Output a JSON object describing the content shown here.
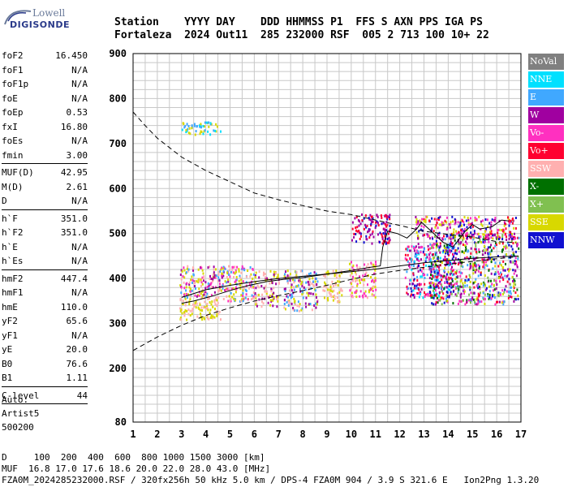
{
  "logo": {
    "line1": "Lowell",
    "line2": "DIGISONDE"
  },
  "header": {
    "line1": "Station    YYYY DAY    DDD HHMMSS P1  FFS S AXN PPS IGA PS",
    "line2": "Fortaleza  2024 Out11  285 232000 RSF  005 2 713 100 10+ 22"
  },
  "params": [
    [
      {
        "label": "foF2",
        "value": "16.450"
      },
      {
        "label": "foF1",
        "value": "N/A"
      },
      {
        "label": "foF1p",
        "value": "N/A"
      },
      {
        "label": "foE",
        "value": "N/A"
      },
      {
        "label": "foEp",
        "value": "0.53"
      },
      {
        "label": "fxI",
        "value": "16.80"
      },
      {
        "label": "foEs",
        "value": "N/A"
      },
      {
        "label": "fmin",
        "value": "3.00"
      }
    ],
    [
      {
        "label": "MUF(D)",
        "value": "42.95"
      },
      {
        "label": "M(D)",
        "value": "2.61"
      },
      {
        "label": "D",
        "value": "N/A"
      }
    ],
    [
      {
        "label": "h`F",
        "value": "351.0"
      },
      {
        "label": "h`F2",
        "value": "351.0"
      },
      {
        "label": "h`E",
        "value": "N/A"
      },
      {
        "label": "h`Es",
        "value": "N/A"
      }
    ],
    [
      {
        "label": "hmF2",
        "value": "447.4"
      },
      {
        "label": "hmF1",
        "value": "N/A"
      },
      {
        "label": "hmE",
        "value": "110.0"
      },
      {
        "label": "yF2",
        "value": "65.6"
      },
      {
        "label": "yF1",
        "value": "N/A"
      },
      {
        "label": "yE",
        "value": "20.0"
      },
      {
        "label": "B0",
        "value": "76.6"
      },
      {
        "label": "B1",
        "value": "1.11"
      }
    ],
    [
      {
        "label": "C-level",
        "value": "44"
      }
    ]
  ],
  "auto": {
    "line1": "Auto:",
    "line2": "Artist5",
    "line3": "500200"
  },
  "legend": [
    {
      "label": "NoVal",
      "color": "#808080"
    },
    {
      "label": "NNE",
      "color": "#00e0ff"
    },
    {
      "label": "E",
      "color": "#40a8ff"
    },
    {
      "label": "W",
      "color": "#a000a0"
    },
    {
      "label": "Vo-",
      "color": "#ff30c0"
    },
    {
      "label": "Vo+",
      "color": "#ff0030"
    },
    {
      "label": "SSW",
      "color": "#ffb0b0"
    },
    {
      "label": "X-",
      "color": "#007000"
    },
    {
      "label": "X+",
      "color": "#80c050"
    },
    {
      "label": "SSE",
      "color": "#d8d800"
    },
    {
      "label": "NNW",
      "color": "#1010d0"
    }
  ],
  "footer": {
    "line1": "D     100  200  400  600  800 1000 1500 3000 [km]",
    "line2": "MUF  16.8 17.0 17.6 18.6 20.0 22.0 28.0 43.0 [MHz]",
    "line3": "FZA0M_2024285232000.RSF / 320fx256h 50 kHz 5.0 km / DPS-4 FZA0M 904 / 3.9 S 321.6 E   Ion2Png 1.3.20"
  },
  "chart_data": {
    "type": "scatter",
    "x_ticks": [
      1,
      2,
      3,
      4,
      5,
      6,
      7,
      8,
      9,
      10,
      11,
      12,
      13,
      14,
      15,
      16,
      17
    ],
    "y_ticks": [
      80,
      200,
      300,
      400,
      500,
      600,
      700,
      800,
      900
    ],
    "xlim": [
      1,
      17
    ],
    "ylim": [
      80,
      900
    ],
    "grid": true,
    "ionogram_clusters": [
      {
        "x": [
          2.9,
          4.9
        ],
        "y": [
          360,
          430
        ],
        "colors": [
          "#40a8ff",
          "#d8d800",
          "#ff30c0",
          "#a000a0",
          "#ffb0b0"
        ]
      },
      {
        "x": [
          2.9,
          4.6
        ],
        "y": [
          310,
          360
        ],
        "colors": [
          "#ffb0b0",
          "#d8d800"
        ]
      },
      {
        "x": [
          4.6,
          6.0
        ],
        "y": [
          350,
          430
        ],
        "colors": [
          "#d8d800",
          "#40a8ff",
          "#ffb0b0",
          "#ff30c0"
        ]
      },
      {
        "x": [
          6.0,
          7.0
        ],
        "y": [
          340,
          420
        ],
        "colors": [
          "#d8d800",
          "#ffb0b0",
          "#a000a0"
        ]
      },
      {
        "x": [
          7.2,
          8.6
        ],
        "y": [
          330,
          420
        ],
        "colors": [
          "#ffb0b0",
          "#d8d800",
          "#a000a0",
          "#40a8ff"
        ]
      },
      {
        "x": [
          8.8,
          9.6
        ],
        "y": [
          350,
          420
        ],
        "colors": [
          "#d8d800",
          "#ffb0b0"
        ]
      },
      {
        "x": [
          9.9,
          11.0
        ],
        "y": [
          360,
          440
        ],
        "colors": [
          "#d8d800",
          "#ffb0b0",
          "#ff30c0"
        ]
      },
      {
        "x": [
          10.0,
          11.6
        ],
        "y": [
          480,
          545
        ],
        "colors": [
          "#1010d0",
          "#a000a0",
          "#ff0030"
        ]
      },
      {
        "x": [
          12.2,
          14.2
        ],
        "y": [
          360,
          480
        ],
        "colors": [
          "#00e0ff",
          "#1010d0",
          "#a000a0",
          "#ff0030",
          "#ff30c0",
          "#40a8ff"
        ]
      },
      {
        "x": [
          13.2,
          16.9
        ],
        "y": [
          345,
          500
        ],
        "colors": [
          "#a000a0",
          "#d8d800",
          "#ff30c0",
          "#ff0030",
          "#1010d0",
          "#40a8ff",
          "#007000",
          "#80c050"
        ]
      },
      {
        "x": [
          12.6,
          16.8
        ],
        "y": [
          490,
          540
        ],
        "colors": [
          "#ff0030",
          "#ff30c0",
          "#a000a0",
          "#1010d0",
          "#d8d800"
        ]
      },
      {
        "x": [
          3.0,
          4.6
        ],
        "y": [
          722,
          750
        ],
        "colors": [
          "#40a8ff",
          "#d8d800",
          "#00e0ff"
        ]
      }
    ],
    "upper_dashed_curve": {
      "x": [
        1,
        1.5,
        2,
        3,
        4,
        5,
        6,
        7,
        8,
        9,
        10,
        11,
        12,
        13,
        14,
        15,
        16,
        16.8
      ],
      "y": [
        770,
        740,
        712,
        670,
        640,
        615,
        590,
        575,
        562,
        550,
        542,
        530,
        518,
        505,
        498,
        492,
        482,
        480
      ]
    },
    "lower_dashed_curve": {
      "x": [
        1,
        1.5,
        2,
        3,
        4,
        5,
        6,
        7,
        8,
        9,
        10,
        11,
        12,
        13,
        14,
        15,
        16,
        16.8
      ],
      "y": [
        240,
        255,
        270,
        296,
        318,
        335,
        350,
        362,
        373,
        385,
        398,
        410,
        418,
        425,
        432,
        438,
        444,
        448
      ]
    },
    "profile_line": {
      "x": [
        3.0,
        4,
        5,
        6,
        7,
        8,
        9,
        10,
        11,
        12,
        13,
        14,
        15,
        16,
        16.9
      ],
      "y": [
        358,
        375,
        385,
        393,
        400,
        405,
        410,
        415,
        421,
        428,
        435,
        440,
        445,
        448,
        450
      ]
    },
    "trace_line": {
      "x": [
        3.0,
        3.5,
        4.2,
        4.8,
        5.3,
        5.8,
        6.5,
        7.2,
        8.0,
        9.0,
        10.0,
        10.8,
        11.2,
        11.3,
        11.5,
        11.9,
        12.3,
        12.7,
        12.9,
        13.3,
        13.8,
        14.2,
        14.7,
        15.0,
        15.3,
        15.8,
        16.2,
        16.5
      ],
      "y": [
        345,
        350,
        360,
        370,
        378,
        385,
        393,
        398,
        402,
        410,
        418,
        425,
        428,
        470,
        505,
        500,
        490,
        510,
        525,
        505,
        480,
        470,
        505,
        520,
        510,
        515,
        530,
        528
      ]
    }
  }
}
